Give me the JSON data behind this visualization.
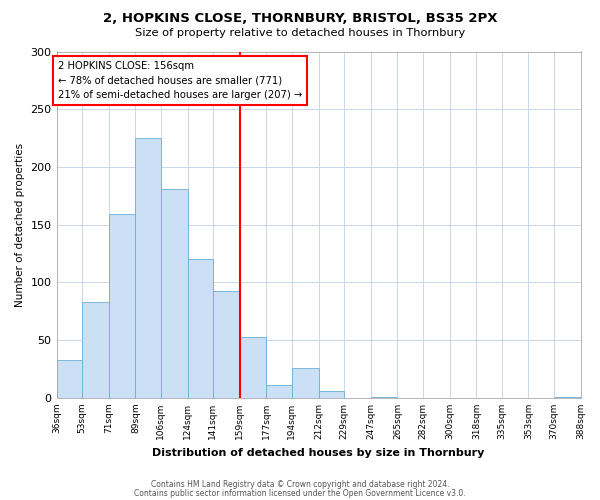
{
  "title": "2, HOPKINS CLOSE, THORNBURY, BRISTOL, BS35 2PX",
  "subtitle": "Size of property relative to detached houses in Thornbury",
  "xlabel": "Distribution of detached houses by size in Thornbury",
  "ylabel": "Number of detached properties",
  "bin_labels": [
    "36sqm",
    "53sqm",
    "71sqm",
    "89sqm",
    "106sqm",
    "124sqm",
    "141sqm",
    "159sqm",
    "177sqm",
    "194sqm",
    "212sqm",
    "229sqm",
    "247sqm",
    "265sqm",
    "282sqm",
    "300sqm",
    "318sqm",
    "335sqm",
    "353sqm",
    "370sqm",
    "388sqm"
  ],
  "bar_heights": [
    33,
    83,
    159,
    225,
    181,
    120,
    93,
    53,
    11,
    26,
    6,
    0,
    1,
    0,
    0,
    0,
    0,
    0,
    0,
    1,
    0
  ],
  "bin_edges": [
    36,
    53,
    71,
    89,
    106,
    124,
    141,
    159,
    177,
    194,
    212,
    229,
    247,
    265,
    282,
    300,
    318,
    335,
    353,
    370,
    388
  ],
  "bar_color": "#cce0f5",
  "bar_edge_color": "#6aaed6",
  "vline_x": 159,
  "vline_color": "red",
  "annotation_line1": "2 HOPKINS CLOSE: 156sqm",
  "annotation_line2": "← 78% of detached houses are smaller (771)",
  "annotation_line3": "21% of semi-detached houses are larger (207) →",
  "annotation_box_color": "white",
  "annotation_box_edge_color": "red",
  "ylim": [
    0,
    300
  ],
  "yticks": [
    0,
    50,
    100,
    150,
    200,
    250,
    300
  ],
  "footer1": "Contains HM Land Registry data © Crown copyright and database right 2024.",
  "footer2": "Contains public sector information licensed under the Open Government Licence v3.0.",
  "bg_color": "white",
  "grid_color": "#c8d8ec"
}
